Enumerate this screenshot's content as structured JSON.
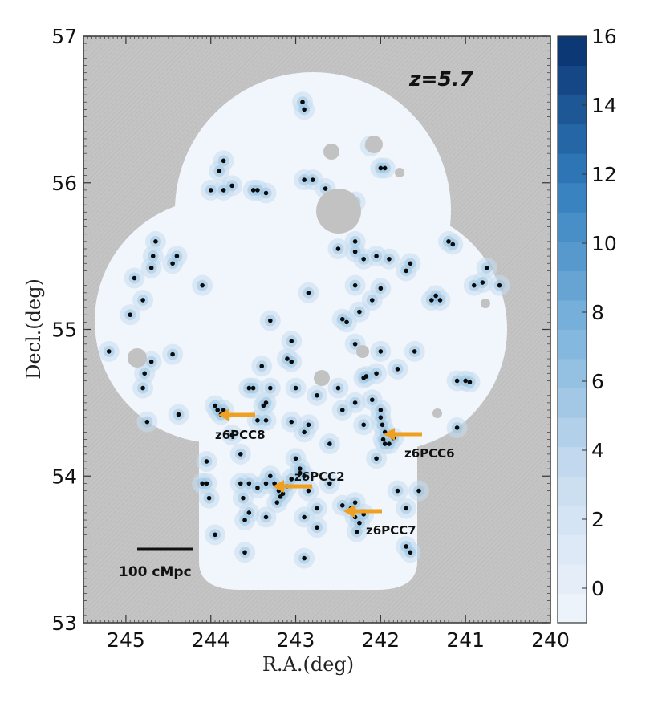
{
  "chart_data": {
    "type": "scatter",
    "title": "",
    "annotation_z": "z=5.7",
    "xlabel": "R.A.(deg)",
    "ylabel": "Decl.(deg)",
    "xlim": [
      245.5,
      240
    ],
    "ylim": [
      53,
      57
    ],
    "x_ticks": [
      "245",
      "244",
      "243",
      "242",
      "241",
      "240"
    ],
    "y_ticks": [
      "53",
      "54",
      "55",
      "56",
      "57"
    ],
    "colorbar": {
      "range": [
        -1,
        16
      ],
      "ticks": [
        "0",
        "2",
        "4",
        "6",
        "8",
        "10",
        "12",
        "14",
        "16"
      ],
      "colormap": "Blues"
    },
    "scale_bar_label": "100 cMpc",
    "background_color": "#c4c4c4",
    "field_color": "#f1f6fc",
    "arrow_color": "#f0a020",
    "overdensities": [
      {
        "name": "z6PCC8",
        "ra": 243.8,
        "dec": 54.43
      },
      {
        "name": "z6PCC6",
        "ra": 241.85,
        "dec": 54.27
      },
      {
        "name": "z6PCC2",
        "ra": 243.15,
        "dec": 53.92
      },
      {
        "name": "z6PCC7",
        "ra": 242.25,
        "dec": 53.73
      }
    ],
    "points": [
      [
        245.2,
        54.85
      ],
      [
        244.95,
        55.1
      ],
      [
        244.9,
        55.35
      ],
      [
        244.8,
        55.2
      ],
      [
        244.65,
        55.6
      ],
      [
        244.68,
        55.5
      ],
      [
        244.7,
        55.42
      ],
      [
        244.45,
        55.45
      ],
      [
        244.4,
        55.5
      ],
      [
        244.1,
        55.3
      ],
      [
        244.7,
        54.78
      ],
      [
        244.78,
        54.7
      ],
      [
        244.8,
        54.6
      ],
      [
        244.75,
        54.37
      ],
      [
        244.45,
        54.83
      ],
      [
        244.38,
        54.42
      ],
      [
        244.0,
        55.95
      ],
      [
        243.9,
        56.08
      ],
      [
        243.85,
        56.15
      ],
      [
        243.85,
        55.95
      ],
      [
        243.75,
        55.98
      ],
      [
        243.5,
        55.95
      ],
      [
        243.45,
        55.95
      ],
      [
        243.35,
        55.93
      ],
      [
        242.92,
        56.55
      ],
      [
        242.9,
        56.5
      ],
      [
        242.9,
        56.02
      ],
      [
        242.8,
        56.02
      ],
      [
        242.65,
        55.96
      ],
      [
        242.3,
        55.87
      ],
      [
        242.12,
        56.25
      ],
      [
        242.0,
        56.1
      ],
      [
        241.95,
        56.1
      ],
      [
        241.2,
        55.6
      ],
      [
        241.15,
        55.58
      ],
      [
        240.75,
        55.42
      ],
      [
        240.8,
        55.32
      ],
      [
        240.9,
        55.3
      ],
      [
        240.6,
        55.3
      ],
      [
        241.35,
        55.23
      ],
      [
        241.3,
        55.2
      ],
      [
        241.4,
        55.2
      ],
      [
        241.65,
        55.45
      ],
      [
        241.7,
        55.4
      ],
      [
        241.9,
        55.48
      ],
      [
        242.05,
        55.5
      ],
      [
        242.2,
        55.48
      ],
      [
        242.3,
        55.6
      ],
      [
        242.3,
        55.53
      ],
      [
        242.5,
        55.55
      ],
      [
        242.3,
        55.3
      ],
      [
        242.0,
        55.28
      ],
      [
        242.1,
        55.2
      ],
      [
        242.25,
        55.12
      ],
      [
        242.85,
        55.25
      ],
      [
        242.4,
        55.05
      ],
      [
        242.45,
        55.07
      ],
      [
        242.3,
        54.9
      ],
      [
        242.0,
        54.85
      ],
      [
        241.6,
        54.85
      ],
      [
        241.1,
        54.65
      ],
      [
        241.0,
        54.65
      ],
      [
        240.95,
        54.64
      ],
      [
        241.8,
        54.73
      ],
      [
        242.05,
        54.7
      ],
      [
        242.17,
        54.68
      ],
      [
        242.2,
        54.67
      ],
      [
        242.1,
        54.52
      ],
      [
        242.3,
        54.5
      ],
      [
        242.45,
        54.45
      ],
      [
        242.2,
        54.35
      ],
      [
        242.0,
        54.45
      ],
      [
        243.3,
        55.06
      ],
      [
        243.05,
        54.92
      ],
      [
        243.1,
        54.8
      ],
      [
        243.05,
        54.78
      ],
      [
        243.4,
        54.75
      ],
      [
        243.55,
        54.6
      ],
      [
        243.5,
        54.6
      ],
      [
        243.35,
        54.5
      ],
      [
        243.38,
        54.48
      ],
      [
        243.3,
        54.6
      ],
      [
        243.0,
        54.6
      ],
      [
        242.75,
        54.55
      ],
      [
        242.5,
        54.6
      ],
      [
        243.95,
        54.48
      ],
      [
        243.92,
        54.45
      ],
      [
        243.85,
        54.45
      ],
      [
        243.88,
        54.42
      ],
      [
        243.75,
        54.28
      ],
      [
        243.45,
        54.38
      ],
      [
        243.35,
        54.38
      ],
      [
        243.05,
        54.37
      ],
      [
        242.85,
        54.35
      ],
      [
        242.9,
        54.3
      ],
      [
        242.6,
        54.22
      ],
      [
        241.95,
        54.3
      ],
      [
        241.97,
        54.25
      ],
      [
        241.95,
        54.22
      ],
      [
        241.9,
        54.22
      ],
      [
        241.98,
        54.35
      ],
      [
        242.0,
        54.4
      ],
      [
        241.85,
        54.26
      ],
      [
        241.1,
        54.33
      ],
      [
        242.05,
        54.12
      ],
      [
        243.65,
        54.15
      ],
      [
        244.05,
        54.1
      ],
      [
        244.1,
        53.95
      ],
      [
        244.05,
        53.95
      ],
      [
        244.02,
        53.85
      ],
      [
        243.65,
        53.95
      ],
      [
        243.55,
        53.95
      ],
      [
        243.62,
        53.85
      ],
      [
        243.55,
        53.75
      ],
      [
        243.6,
        53.7
      ],
      [
        243.45,
        53.92
      ],
      [
        243.35,
        53.95
      ],
      [
        243.3,
        54.0
      ],
      [
        243.25,
        53.95
      ],
      [
        243.2,
        53.9
      ],
      [
        243.15,
        53.88
      ],
      [
        243.18,
        53.86
      ],
      [
        243.22,
        53.82
      ],
      [
        243.1,
        53.93
      ],
      [
        243.05,
        53.98
      ],
      [
        242.95,
        54.02
      ],
      [
        242.9,
        54.0
      ],
      [
        242.95,
        54.05
      ],
      [
        243.0,
        54.12
      ],
      [
        242.85,
        53.9
      ],
      [
        242.75,
        53.78
      ],
      [
        242.9,
        53.72
      ],
      [
        242.75,
        53.65
      ],
      [
        243.35,
        53.72
      ],
      [
        243.95,
        53.6
      ],
      [
        243.6,
        53.48
      ],
      [
        242.9,
        53.44
      ],
      [
        242.45,
        53.8
      ],
      [
        242.35,
        53.78
      ],
      [
        242.3,
        53.72
      ],
      [
        242.25,
        53.68
      ],
      [
        242.2,
        53.74
      ],
      [
        242.28,
        53.62
      ],
      [
        242.3,
        53.82
      ],
      [
        241.8,
        53.9
      ],
      [
        241.7,
        53.78
      ],
      [
        241.55,
        53.9
      ],
      [
        241.7,
        53.52
      ],
      [
        241.65,
        53.48
      ],
      [
        242.6,
        53.95
      ]
    ]
  }
}
